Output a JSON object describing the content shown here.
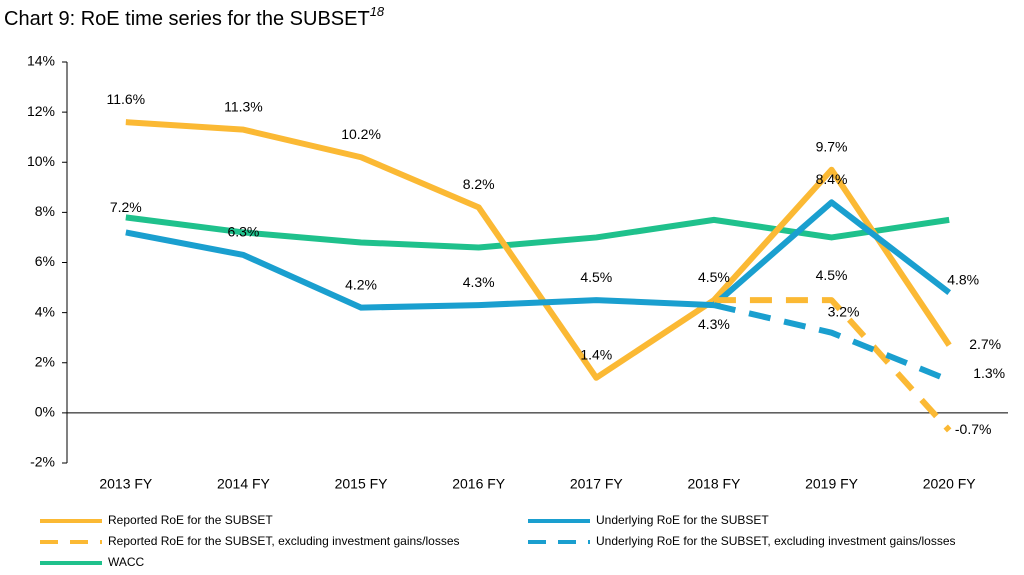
{
  "chart_data": {
    "type": "line",
    "title": "Chart 9: RoE time series for the SUBSET",
    "title_footnote": "18",
    "categories": [
      "2013 FY",
      "2014 FY",
      "2015 FY",
      "2016 FY",
      "2017 FY",
      "2018 FY",
      "2019 FY",
      "2020 FY"
    ],
    "ylim": [
      -2,
      14
    ],
    "yticks": [
      {
        "value": -2,
        "label": "-2%"
      },
      {
        "value": 0,
        "label": "0%"
      },
      {
        "value": 2,
        "label": "2%"
      },
      {
        "value": 4,
        "label": "4%"
      },
      {
        "value": 6,
        "label": "6%"
      },
      {
        "value": 8,
        "label": "8%"
      },
      {
        "value": 10,
        "label": "10%"
      },
      {
        "value": 12,
        "label": "12%"
      },
      {
        "value": 14,
        "label": "14%"
      }
    ],
    "grid": false,
    "legend": "bottom",
    "series": [
      {
        "name": "Reported RoE for the SUBSET",
        "color": "#fbb934",
        "dashed": false,
        "values": [
          11.6,
          11.3,
          10.2,
          8.2,
          1.4,
          4.5,
          9.7,
          2.7
        ],
        "value_labels": [
          "11.6%",
          "11.3%",
          "10.2%",
          "8.2%",
          "1.4%",
          "4.5%",
          "9.7%",
          "2.7%"
        ]
      },
      {
        "name": "Underlying RoE for the SUBSET",
        "color": "#1a9fcf",
        "dashed": false,
        "values": [
          7.2,
          6.3,
          4.2,
          4.3,
          4.5,
          4.3,
          8.4,
          4.8
        ],
        "value_labels": [
          "7.2%",
          "6.3%",
          "4.2%",
          "4.3%",
          "4.5%",
          "4.3%",
          "8.4%",
          "4.8%"
        ]
      },
      {
        "name": "Reported RoE for the SUBSET, excluding investment gains/losses",
        "color": "#fbb934",
        "dashed": true,
        "values": [
          null,
          null,
          null,
          null,
          null,
          4.5,
          4.5,
          -0.7
        ],
        "value_labels": [
          null,
          null,
          null,
          null,
          null,
          null,
          "4.5%",
          "-0.7%"
        ]
      },
      {
        "name": "Underlying RoE for the SUBSET, excluding investment gains/losses",
        "color": "#1a9fcf",
        "dashed": true,
        "values": [
          null,
          null,
          null,
          null,
          null,
          4.3,
          3.2,
          1.3
        ],
        "value_labels": [
          null,
          null,
          null,
          null,
          null,
          null,
          "3.2%",
          "1.3%"
        ]
      },
      {
        "name": "WACC",
        "color": "#1fc18c",
        "dashed": false,
        "values": [
          7.8,
          7.2,
          6.8,
          6.6,
          7.0,
          7.7,
          7.0,
          7.7
        ]
      }
    ]
  }
}
